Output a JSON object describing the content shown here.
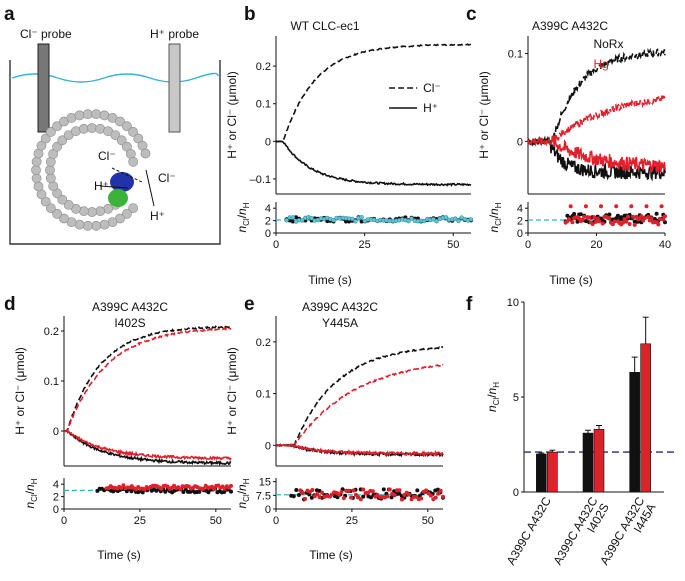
{
  "colors": {
    "black": "#111111",
    "red": "#e0202b",
    "cyan": "#35b4d4",
    "navy": "#2a2c6e",
    "gray": "#9a9a9a"
  },
  "panel_labels": {
    "a": "a",
    "b": "b",
    "c": "c",
    "d": "d",
    "e": "e",
    "f": "f"
  },
  "panel_a": {
    "cl_probe": "Cl⁻ probe",
    "h_probe": "H⁺ probe",
    "cl_inside": "Cl⁻",
    "h_inside": "H⁺",
    "cl_outside": "Cl⁻",
    "h_outside": "H⁺"
  },
  "shared": {
    "ylabel_top": "H⁺ or Cl⁻ (μmol)",
    "ylabel_bottom": "n_Cl/n_H",
    "xlabel": "Time (s)"
  },
  "chart_data": [
    {
      "id": "b",
      "type": "line",
      "title": "WT CLC-ec1",
      "xlim": [
        0,
        55
      ],
      "ylim": [
        -0.14,
        0.28
      ],
      "xticks": [
        "0",
        "25",
        "50"
      ],
      "xtick_values": [
        0,
        25,
        50
      ],
      "yticks": [
        "0.2",
        "0.1",
        "0",
        "–0.1"
      ],
      "ytick_values": [
        0.2,
        0.1,
        0,
        -0.1
      ],
      "legend": {
        "position": "middle-right",
        "entries": [
          {
            "label": "Cl⁻",
            "style": "dashed"
          },
          {
            "label": "H⁺",
            "style": "solid"
          }
        ]
      },
      "series": [
        {
          "name": "Cl⁻",
          "color": "black",
          "style": "dashed",
          "model": {
            "t0": 2,
            "amp": 0.258,
            "tau": 9
          }
        },
        {
          "name": "H⁺",
          "color": "black",
          "style": "solid",
          "model": {
            "t0": 2,
            "amp": -0.115,
            "tau": 8
          }
        }
      ],
      "ratio": {
        "ylim": [
          0,
          5
        ],
        "yticks": [
          "4",
          "2",
          "0"
        ],
        "ytick_values": [
          4,
          2,
          0
        ],
        "reference": 2.1,
        "series": [
          {
            "color": "black",
            "mean": 2.2,
            "t_start": 3,
            "t_end": 55
          },
          {
            "color": "cyan",
            "mean": 2.2,
            "t_start": 3,
            "t_end": 55
          }
        ]
      }
    },
    {
      "id": "c",
      "type": "line",
      "title": "A399C A432C",
      "xlim": [
        0,
        40
      ],
      "ylim": [
        -0.06,
        0.12
      ],
      "xticks": [
        "0",
        "20",
        "40"
      ],
      "xtick_values": [
        0,
        20,
        40
      ],
      "yticks": [
        "0.1",
        "0"
      ],
      "ytick_values": [
        0.1,
        0
      ],
      "legend": {
        "position": "top-right",
        "entries": [
          {
            "label": "NoRx",
            "color": "black"
          },
          {
            "label": "Hg",
            "color": "red"
          }
        ]
      },
      "series": [
        {
          "name": "NoRx Cl⁻",
          "color": "black",
          "style": "dashed",
          "model": {
            "t0": 7,
            "amp": 0.103,
            "tau": 8
          }
        },
        {
          "name": "Hg Cl⁻",
          "color": "red",
          "style": "dashed",
          "model": {
            "t0": 7,
            "amp": 0.058,
            "tau": 18
          }
        },
        {
          "name": "NoRx H⁺",
          "color": "black",
          "style": "solid",
          "model": {
            "t0": 6,
            "amp": -0.035,
            "tau": 4
          }
        },
        {
          "name": "Hg H⁺",
          "color": "red",
          "style": "solid",
          "model": {
            "t0": 7,
            "amp": -0.03,
            "tau": 12
          }
        }
      ],
      "ratio": {
        "ylim": [
          0,
          5
        ],
        "yticks": [
          "4",
          "2",
          "0"
        ],
        "ytick_values": [
          4,
          2,
          0
        ],
        "reference": 2.1,
        "series": [
          {
            "color": "black",
            "mean": 2.4,
            "t_start": 11,
            "t_end": 40
          },
          {
            "color": "red",
            "mean": 2.0,
            "t_start": 11,
            "t_end": 40
          }
        ]
      }
    },
    {
      "id": "d",
      "type": "line",
      "title": "A399C A432C",
      "subtitle": "I402S",
      "xlim": [
        0,
        55
      ],
      "ylim": [
        -0.07,
        0.23
      ],
      "xticks": [
        "0",
        "25",
        "50"
      ],
      "xtick_values": [
        0,
        25,
        50
      ],
      "yticks": [
        "0.2",
        "0.1",
        "0"
      ],
      "ytick_values": [
        0.2,
        0.1,
        0
      ],
      "series": [
        {
          "name": "NoRx Cl⁻",
          "color": "black",
          "style": "dashed",
          "model": {
            "t0": 1,
            "amp": 0.21,
            "tau": 11
          }
        },
        {
          "name": "Hg Cl⁻",
          "color": "red",
          "style": "dashed",
          "model": {
            "t0": 1,
            "amp": 0.208,
            "tau": 13
          }
        },
        {
          "name": "NoRx H⁺",
          "color": "black",
          "style": "solid",
          "model": {
            "t0": 1,
            "amp": -0.065,
            "tau": 12
          }
        },
        {
          "name": "Hg H⁺",
          "color": "red",
          "style": "solid",
          "model": {
            "t0": 1,
            "amp": -0.055,
            "tau": 12
          }
        }
      ],
      "ratio": {
        "ylim": [
          0,
          5
        ],
        "yticks": [
          "4",
          "2",
          "0"
        ],
        "ytick_values": [
          4,
          2,
          0
        ],
        "reference": 3.0,
        "series": [
          {
            "color": "black",
            "mean": 3.0,
            "t_start": 11,
            "t_end": 55
          },
          {
            "color": "red",
            "mean": 3.5,
            "t_start": 14,
            "t_end": 55
          }
        ]
      }
    },
    {
      "id": "e",
      "type": "line",
      "title": "A399C A432C",
      "subtitle": "Y445A",
      "xlim": [
        0,
        55
      ],
      "ylim": [
        -0.04,
        0.25
      ],
      "xticks": [
        "0",
        "25",
        "50"
      ],
      "xtick_values": [
        0,
        25,
        50
      ],
      "yticks": [
        "0.2",
        "0.1",
        "0"
      ],
      "ytick_values": [
        0.2,
        0.1,
        0
      ],
      "series": [
        {
          "name": "NoRx Cl⁻",
          "color": "black",
          "style": "dashed",
          "model": {
            "t0": 6,
            "amp": 0.195,
            "tau": 14
          }
        },
        {
          "name": "Hg Cl⁻",
          "color": "red",
          "style": "dashed",
          "model": {
            "t0": 6,
            "amp": 0.17,
            "tau": 20
          }
        },
        {
          "name": "NoRx H⁺",
          "color": "black",
          "style": "solid",
          "model": {
            "t0": 5,
            "amp": -0.018,
            "tau": 10
          }
        },
        {
          "name": "Hg H⁺",
          "color": "red",
          "style": "solid",
          "model": {
            "t0": 5,
            "amp": -0.016,
            "tau": 10
          }
        }
      ],
      "ratio": {
        "ylim": [
          0,
          17
        ],
        "yticks": [
          "15",
          "7.5",
          "0"
        ],
        "ytick_values": [
          15,
          7.5,
          0
        ],
        "reference": 7.8,
        "series": [
          {
            "color": "black",
            "mean": 8.0,
            "t_start": 5,
            "t_end": 55
          },
          {
            "color": "red",
            "mean": 8.0,
            "t_start": 8,
            "t_end": 55
          }
        ]
      }
    },
    {
      "id": "f",
      "type": "bar",
      "xlim": [
        0,
        3
      ],
      "ylim": [
        0,
        10
      ],
      "yticks": [
        "10",
        "5",
        "0"
      ],
      "ytick_values": [
        10,
        5,
        0
      ],
      "ylabel": "n_Cl/n_H",
      "categories": [
        [
          "A399C A432C"
        ],
        [
          "A399C A432C",
          "I402S"
        ],
        [
          "A399C A432C",
          "I445A"
        ]
      ],
      "reference": 2.1,
      "series": [
        {
          "name": "NoRx",
          "color": "black",
          "values": [
            2.0,
            3.1,
            6.3
          ],
          "errors": [
            0.05,
            0.15,
            0.8
          ]
        },
        {
          "name": "Hg",
          "color": "red",
          "values": [
            2.1,
            3.3,
            7.8
          ],
          "errors": [
            0.1,
            0.2,
            1.4
          ]
        }
      ]
    }
  ]
}
